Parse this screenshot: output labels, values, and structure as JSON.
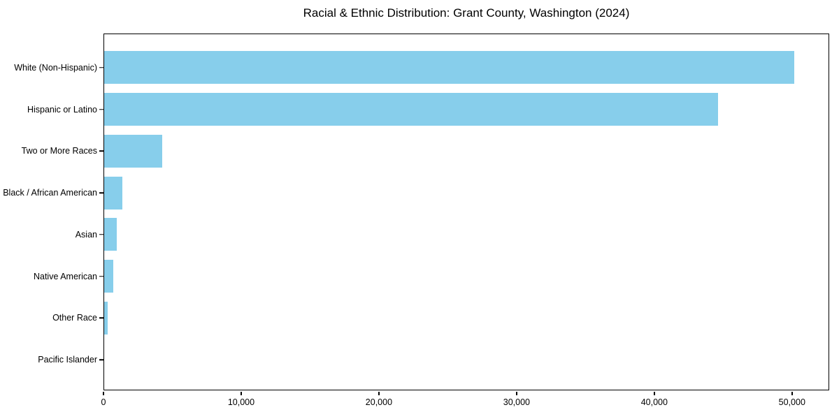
{
  "chart_data": {
    "type": "bar",
    "orientation": "horizontal",
    "title": "Racial & Ethnic Distribution: Grant County, Washington (2024)",
    "categories": [
      "White (Non-Hispanic)",
      "Hispanic or Latino",
      "Two or More Races",
      "Black / African American",
      "Asian",
      "Native American",
      "Other Race",
      "Pacific Islander"
    ],
    "values": [
      50100,
      44600,
      4200,
      1300,
      900,
      650,
      250,
      0
    ],
    "xlabel": "",
    "ylabel": "",
    "xlim": [
      0,
      52600
    ],
    "xticks": [
      0,
      10000,
      20000,
      30000,
      40000,
      50000
    ],
    "xtick_labels": [
      "0",
      "10,000",
      "20,000",
      "30,000",
      "40,000",
      "50,000"
    ],
    "bar_color": "#87CEEB",
    "text_color": "#000000",
    "spine_color": "#000000",
    "grid": false,
    "legend": null
  }
}
